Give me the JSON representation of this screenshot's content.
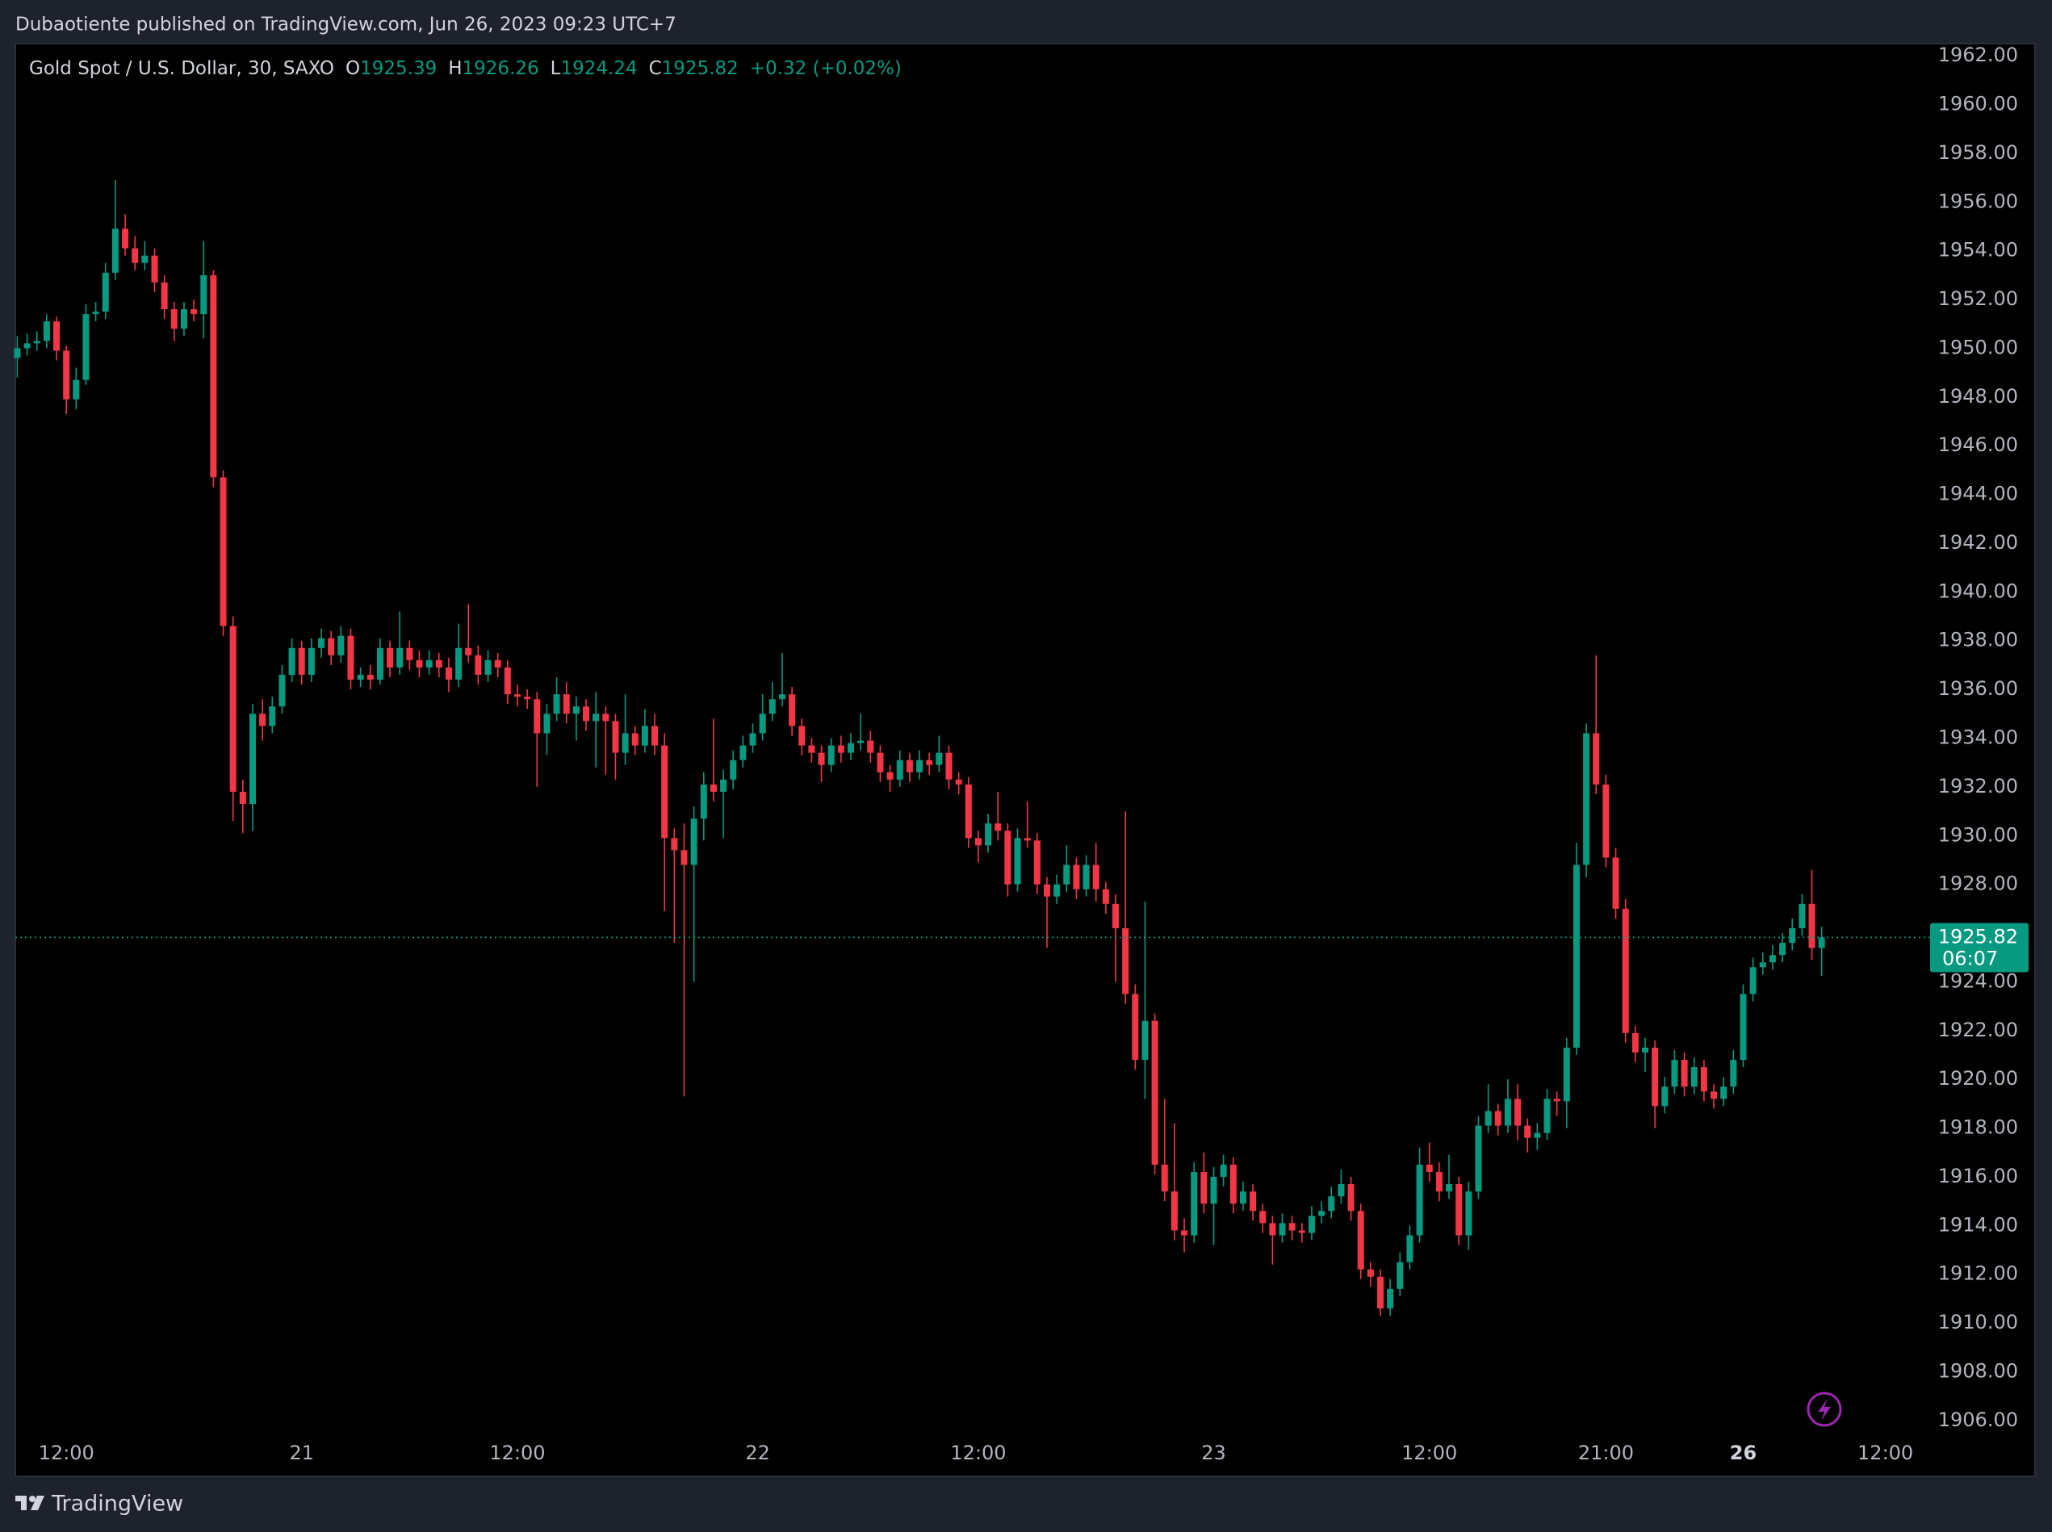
{
  "attribution": "Dubaotiente published on TradingView.com, Jun 26, 2023 09:23 UTC+7",
  "footer": {
    "brand": "TradingView"
  },
  "chart_data": {
    "type": "candlestick",
    "symbol": "Gold Spot / U.S. Dollar, 30, SAXO",
    "ohlc_labels": [
      "O",
      "H",
      "L",
      "C"
    ],
    "change": "+0.32 (+0.02%)",
    "countdown": "06:07",
    "up_color": "#089981",
    "down_color": "#f23645",
    "grid": false,
    "ylim": [
      1905.5,
      1962.5
    ],
    "yticks": [
      {
        "value": 1906,
        "label": "1906.00"
      },
      {
        "value": 1908,
        "label": "1908.00"
      },
      {
        "value": 1910,
        "label": "1910.00"
      },
      {
        "value": 1912,
        "label": "1912.00"
      },
      {
        "value": 1914,
        "label": "1914.00"
      },
      {
        "value": 1916,
        "label": "1916.00"
      },
      {
        "value": 1918,
        "label": "1918.00"
      },
      {
        "value": 1920,
        "label": "1920.00"
      },
      {
        "value": 1922,
        "label": "1922.00"
      },
      {
        "value": 1924,
        "label": "1924.00"
      },
      {
        "value": 1926,
        "label": "1926.00"
      },
      {
        "value": 1928,
        "label": "1928.00"
      },
      {
        "value": 1930,
        "label": "1930.00"
      },
      {
        "value": 1932,
        "label": "1932.00"
      },
      {
        "value": 1934,
        "label": "1934.00"
      },
      {
        "value": 1936,
        "label": "1936.00"
      },
      {
        "value": 1938,
        "label": "1938.00"
      },
      {
        "value": 1940,
        "label": "1940.00"
      },
      {
        "value": 1942,
        "label": "1942.00"
      },
      {
        "value": 1944,
        "label": "1944.00"
      },
      {
        "value": 1946,
        "label": "1946.00"
      },
      {
        "value": 1948,
        "label": "1948.00"
      },
      {
        "value": 1950,
        "label": "1950.00"
      },
      {
        "value": 1952,
        "label": "1952.00"
      },
      {
        "value": 1954,
        "label": "1954.00"
      },
      {
        "value": 1956,
        "label": "1956.00"
      },
      {
        "value": 1958,
        "label": "1958.00"
      },
      {
        "value": 1960,
        "label": "1960.00"
      },
      {
        "value": 1962,
        "label": "1962.00"
      }
    ],
    "xlim": [
      -0.2,
      194.4
    ],
    "xticks": [
      {
        "value": 5,
        "label": "12:00"
      },
      {
        "value": 29,
        "label": "21"
      },
      {
        "value": 51,
        "label": "12:00"
      },
      {
        "value": 75.5,
        "label": "22"
      },
      {
        "value": 98,
        "label": "12:00"
      },
      {
        "value": 122,
        "label": "23"
      },
      {
        "value": 144,
        "label": "12:00"
      },
      {
        "value": 162,
        "label": "21:00"
      },
      {
        "value": 176,
        "label": "26",
        "bold": true
      },
      {
        "value": 190.5,
        "label": "12:00"
      }
    ],
    "candles": [
      [
        1949.6,
        1950.5,
        1948.8,
        1950.0
      ],
      [
        1950.0,
        1950.6,
        1949.7,
        1950.2
      ],
      [
        1950.2,
        1950.7,
        1949.9,
        1950.3
      ],
      [
        1950.3,
        1951.4,
        1950.0,
        1951.1
      ],
      [
        1951.1,
        1951.3,
        1949.5,
        1949.9
      ],
      [
        1949.9,
        1950.1,
        1947.3,
        1947.9
      ],
      [
        1947.9,
        1949.2,
        1947.5,
        1948.7
      ],
      [
        1948.7,
        1951.8,
        1948.5,
        1951.4
      ],
      [
        1951.4,
        1951.9,
        1951.1,
        1951.5
      ],
      [
        1951.5,
        1953.5,
        1951.2,
        1953.1
      ],
      [
        1953.1,
        1956.9,
        1952.8,
        1954.9
      ],
      [
        1954.9,
        1955.5,
        1953.8,
        1954.1
      ],
      [
        1954.1,
        1954.6,
        1953.2,
        1953.5
      ],
      [
        1953.5,
        1954.4,
        1953.2,
        1953.8
      ],
      [
        1953.8,
        1954.1,
        1952.3,
        1952.7
      ],
      [
        1952.7,
        1953.0,
        1951.2,
        1951.6
      ],
      [
        1951.6,
        1951.9,
        1950.3,
        1950.8
      ],
      [
        1950.8,
        1951.9,
        1950.5,
        1951.6
      ],
      [
        1951.6,
        1952.0,
        1951.1,
        1951.4
      ],
      [
        1951.4,
        1954.4,
        1950.4,
        1953.0
      ],
      [
        1953.0,
        1953.2,
        1944.3,
        1944.7
      ],
      [
        1944.7,
        1945.0,
        1938.2,
        1938.6
      ],
      [
        1938.6,
        1939.0,
        1930.6,
        1931.8
      ],
      [
        1931.8,
        1932.3,
        1930.1,
        1931.3
      ],
      [
        1931.3,
        1935.4,
        1930.2,
        1935.0
      ],
      [
        1935.0,
        1935.6,
        1933.9,
        1934.5
      ],
      [
        1934.5,
        1935.7,
        1934.2,
        1935.3
      ],
      [
        1935.3,
        1937.0,
        1935.0,
        1936.6
      ],
      [
        1936.6,
        1938.1,
        1936.3,
        1937.7
      ],
      [
        1937.7,
        1938.0,
        1936.2,
        1936.6
      ],
      [
        1936.6,
        1938.1,
        1936.3,
        1937.7
      ],
      [
        1937.7,
        1938.5,
        1937.3,
        1938.1
      ],
      [
        1938.1,
        1938.4,
        1937.0,
        1937.4
      ],
      [
        1937.4,
        1938.6,
        1937.1,
        1938.2
      ],
      [
        1938.2,
        1938.5,
        1936.0,
        1936.4
      ],
      [
        1936.4,
        1936.9,
        1936.1,
        1936.6
      ],
      [
        1936.6,
        1937.0,
        1936.0,
        1936.4
      ],
      [
        1936.4,
        1938.1,
        1936.2,
        1937.7
      ],
      [
        1937.7,
        1938.0,
        1936.5,
        1936.9
      ],
      [
        1936.9,
        1939.2,
        1936.6,
        1937.7
      ],
      [
        1937.7,
        1938.0,
        1936.8,
        1937.2
      ],
      [
        1937.2,
        1937.6,
        1936.5,
        1936.9
      ],
      [
        1936.9,
        1937.6,
        1936.6,
        1937.2
      ],
      [
        1937.2,
        1937.5,
        1936.5,
        1936.9
      ],
      [
        1936.9,
        1937.3,
        1935.9,
        1936.4
      ],
      [
        1936.4,
        1938.7,
        1936.1,
        1937.7
      ],
      [
        1937.7,
        1939.5,
        1937.1,
        1937.4
      ],
      [
        1937.4,
        1937.8,
        1936.2,
        1936.6
      ],
      [
        1936.6,
        1937.6,
        1936.3,
        1937.2
      ],
      [
        1937.2,
        1937.5,
        1936.5,
        1936.9
      ],
      [
        1936.9,
        1937.2,
        1935.4,
        1935.8
      ],
      [
        1935.8,
        1936.2,
        1935.3,
        1935.7
      ],
      [
        1935.7,
        1936.0,
        1935.2,
        1935.6
      ],
      [
        1935.6,
        1935.9,
        1932.0,
        1934.2
      ],
      [
        1934.2,
        1935.4,
        1933.3,
        1935.0
      ],
      [
        1935.0,
        1936.5,
        1934.7,
        1935.8
      ],
      [
        1935.8,
        1936.3,
        1934.6,
        1935.0
      ],
      [
        1935.0,
        1935.7,
        1933.9,
        1935.3
      ],
      [
        1935.3,
        1935.6,
        1934.3,
        1934.7
      ],
      [
        1934.7,
        1935.9,
        1932.8,
        1935.0
      ],
      [
        1935.0,
        1935.3,
        1932.5,
        1934.7
      ],
      [
        1934.7,
        1935.0,
        1932.3,
        1933.4
      ],
      [
        1933.4,
        1935.8,
        1932.9,
        1934.2
      ],
      [
        1934.2,
        1934.5,
        1933.3,
        1933.7
      ],
      [
        1933.7,
        1935.2,
        1933.4,
        1934.5
      ],
      [
        1934.5,
        1935.0,
        1933.3,
        1933.7
      ],
      [
        1933.7,
        1934.2,
        1926.9,
        1929.9
      ],
      [
        1929.9,
        1930.3,
        1925.6,
        1929.4
      ],
      [
        1929.4,
        1930.5,
        1919.3,
        1928.8
      ],
      [
        1928.8,
        1931.2,
        1924.0,
        1930.7
      ],
      [
        1930.7,
        1932.6,
        1929.8,
        1932.1
      ],
      [
        1932.1,
        1934.8,
        1931.4,
        1931.8
      ],
      [
        1931.8,
        1932.7,
        1929.9,
        1932.3
      ],
      [
        1932.3,
        1933.5,
        1931.9,
        1933.1
      ],
      [
        1933.1,
        1934.1,
        1932.8,
        1933.7
      ],
      [
        1933.7,
        1934.6,
        1933.4,
        1934.2
      ],
      [
        1934.2,
        1935.8,
        1933.9,
        1935.0
      ],
      [
        1935.0,
        1936.3,
        1934.7,
        1935.6
      ],
      [
        1935.6,
        1937.5,
        1935.3,
        1935.8
      ],
      [
        1935.8,
        1936.1,
        1934.1,
        1934.5
      ],
      [
        1934.5,
        1934.8,
        1933.3,
        1933.7
      ],
      [
        1933.7,
        1934.0,
        1933.0,
        1933.4
      ],
      [
        1933.4,
        1933.7,
        1932.2,
        1932.9
      ],
      [
        1932.9,
        1934.0,
        1932.6,
        1933.7
      ],
      [
        1933.7,
        1934.1,
        1933.0,
        1933.4
      ],
      [
        1933.4,
        1934.2,
        1933.1,
        1933.8
      ],
      [
        1933.8,
        1935.0,
        1933.5,
        1933.9
      ],
      [
        1933.9,
        1934.3,
        1933.0,
        1933.4
      ],
      [
        1933.4,
        1933.7,
        1932.2,
        1932.6
      ],
      [
        1932.6,
        1932.9,
        1931.8,
        1932.3
      ],
      [
        1932.3,
        1933.5,
        1932.0,
        1933.1
      ],
      [
        1933.1,
        1933.4,
        1932.2,
        1932.6
      ],
      [
        1932.6,
        1933.5,
        1932.3,
        1933.1
      ],
      [
        1933.1,
        1933.4,
        1932.5,
        1932.9
      ],
      [
        1932.9,
        1934.1,
        1932.6,
        1933.4
      ],
      [
        1933.4,
        1933.7,
        1931.9,
        1932.3
      ],
      [
        1932.3,
        1932.6,
        1931.7,
        1932.1
      ],
      [
        1932.1,
        1932.4,
        1929.5,
        1929.9
      ],
      [
        1929.9,
        1930.2,
        1928.9,
        1929.6
      ],
      [
        1929.6,
        1930.9,
        1929.3,
        1930.5
      ],
      [
        1930.5,
        1931.8,
        1929.8,
        1930.2
      ],
      [
        1930.2,
        1930.5,
        1927.5,
        1928.0
      ],
      [
        1928.0,
        1930.3,
        1927.7,
        1929.9
      ],
      [
        1929.9,
        1931.4,
        1929.5,
        1929.8
      ],
      [
        1929.8,
        1930.1,
        1927.6,
        1928.0
      ],
      [
        1928.0,
        1928.3,
        1925.4,
        1927.5
      ],
      [
        1927.5,
        1928.4,
        1927.2,
        1928.0
      ],
      [
        1928.0,
        1929.6,
        1927.7,
        1928.8
      ],
      [
        1928.8,
        1929.1,
        1927.4,
        1927.8
      ],
      [
        1927.8,
        1929.2,
        1927.5,
        1928.8
      ],
      [
        1928.8,
        1929.7,
        1927.3,
        1927.8
      ],
      [
        1927.8,
        1928.1,
        1926.8,
        1927.2
      ],
      [
        1927.2,
        1927.6,
        1924.0,
        1926.2
      ],
      [
        1926.2,
        1931.0,
        1923.1,
        1923.5
      ],
      [
        1923.5,
        1923.9,
        1920.4,
        1920.8
      ],
      [
        1920.8,
        1927.3,
        1919.2,
        1922.4
      ],
      [
        1922.4,
        1922.7,
        1916.1,
        1916.5
      ],
      [
        1916.5,
        1919.2,
        1915.0,
        1915.4
      ],
      [
        1915.4,
        1918.2,
        1913.4,
        1913.8
      ],
      [
        1913.8,
        1914.3,
        1912.9,
        1913.6
      ],
      [
        1913.6,
        1916.6,
        1913.3,
        1916.2
      ],
      [
        1916.2,
        1917.0,
        1914.5,
        1914.9
      ],
      [
        1914.9,
        1916.4,
        1913.2,
        1916.0
      ],
      [
        1916.0,
        1916.9,
        1915.6,
        1916.5
      ],
      [
        1916.5,
        1916.8,
        1914.5,
        1914.9
      ],
      [
        1914.9,
        1915.8,
        1914.6,
        1915.4
      ],
      [
        1915.4,
        1915.7,
        1914.2,
        1914.6
      ],
      [
        1914.6,
        1914.9,
        1913.7,
        1914.1
      ],
      [
        1914.1,
        1914.4,
        1912.4,
        1913.6
      ],
      [
        1913.6,
        1914.5,
        1913.3,
        1914.1
      ],
      [
        1914.1,
        1914.4,
        1913.4,
        1913.8
      ],
      [
        1913.8,
        1914.1,
        1913.3,
        1913.7
      ],
      [
        1913.7,
        1914.8,
        1913.4,
        1914.4
      ],
      [
        1914.4,
        1915.0,
        1914.1,
        1914.6
      ],
      [
        1914.6,
        1915.6,
        1914.3,
        1915.2
      ],
      [
        1915.2,
        1916.3,
        1914.9,
        1915.7
      ],
      [
        1915.7,
        1916.0,
        1914.2,
        1914.6
      ],
      [
        1914.6,
        1914.9,
        1911.8,
        1912.2
      ],
      [
        1912.2,
        1912.5,
        1911.5,
        1911.9
      ],
      [
        1911.9,
        1912.2,
        1910.3,
        1910.6
      ],
      [
        1910.6,
        1911.8,
        1910.3,
        1911.4
      ],
      [
        1911.4,
        1912.9,
        1911.1,
        1912.5
      ],
      [
        1912.5,
        1914.0,
        1912.2,
        1913.6
      ],
      [
        1913.6,
        1917.2,
        1913.3,
        1916.5
      ],
      [
        1916.5,
        1917.4,
        1915.8,
        1916.2
      ],
      [
        1916.2,
        1916.6,
        1915.0,
        1915.4
      ],
      [
        1915.4,
        1916.9,
        1915.1,
        1915.7
      ],
      [
        1915.7,
        1916.0,
        1913.2,
        1913.6
      ],
      [
        1913.6,
        1915.8,
        1913.0,
        1915.4
      ],
      [
        1915.4,
        1918.5,
        1915.1,
        1918.1
      ],
      [
        1918.1,
        1919.8,
        1917.8,
        1918.7
      ],
      [
        1918.7,
        1919.0,
        1917.7,
        1918.1
      ],
      [
        1918.1,
        1920.0,
        1917.8,
        1919.2
      ],
      [
        1919.2,
        1919.8,
        1917.5,
        1918.1
      ],
      [
        1918.1,
        1918.4,
        1917.0,
        1917.6
      ],
      [
        1917.6,
        1918.2,
        1917.1,
        1917.8
      ],
      [
        1917.8,
        1919.6,
        1917.5,
        1919.2
      ],
      [
        1919.2,
        1919.5,
        1918.5,
        1919.1
      ],
      [
        1919.1,
        1921.7,
        1918.0,
        1921.3
      ],
      [
        1921.3,
        1929.7,
        1921.0,
        1928.8
      ],
      [
        1928.8,
        1934.6,
        1928.3,
        1934.2
      ],
      [
        1934.2,
        1937.4,
        1931.7,
        1932.1
      ],
      [
        1932.1,
        1932.5,
        1928.7,
        1929.1
      ],
      [
        1929.1,
        1929.5,
        1926.6,
        1927.0
      ],
      [
        1927.0,
        1927.4,
        1921.5,
        1921.9
      ],
      [
        1921.9,
        1922.2,
        1920.7,
        1921.1
      ],
      [
        1921.1,
        1921.7,
        1920.3,
        1921.3
      ],
      [
        1921.3,
        1921.6,
        1918.0,
        1918.9
      ],
      [
        1918.9,
        1920.1,
        1918.6,
        1919.7
      ],
      [
        1919.7,
        1921.2,
        1919.4,
        1920.8
      ],
      [
        1920.8,
        1921.1,
        1919.3,
        1919.7
      ],
      [
        1919.7,
        1920.9,
        1919.4,
        1920.5
      ],
      [
        1920.5,
        1920.8,
        1919.1,
        1919.5
      ],
      [
        1919.5,
        1919.8,
        1918.8,
        1919.2
      ],
      [
        1919.2,
        1920.1,
        1918.9,
        1919.7
      ],
      [
        1919.7,
        1921.2,
        1919.4,
        1920.8
      ],
      [
        1920.8,
        1923.9,
        1920.5,
        1923.5
      ],
      [
        1923.5,
        1925.0,
        1923.2,
        1924.6
      ],
      [
        1924.6,
        1925.2,
        1924.3,
        1924.8
      ],
      [
        1924.8,
        1925.5,
        1924.5,
        1925.1
      ],
      [
        1925.1,
        1926.0,
        1924.8,
        1925.6
      ],
      [
        1925.6,
        1926.6,
        1925.3,
        1926.2
      ],
      [
        1926.2,
        1927.6,
        1925.9,
        1927.2
      ],
      [
        1927.2,
        1928.6,
        1924.9,
        1925.39
      ],
      [
        1925.39,
        1926.26,
        1924.24,
        1925.82
      ]
    ]
  }
}
